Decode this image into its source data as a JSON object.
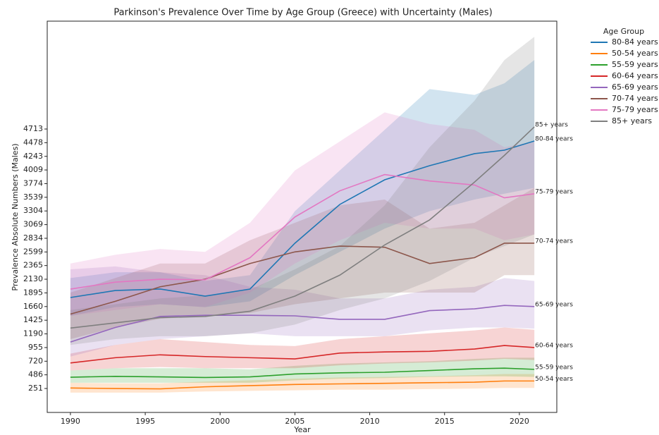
{
  "chart_data": {
    "type": "line",
    "title": "Parkinson's Prevalence Over Time by Age Group (Greece) with Uncertainty (Males)",
    "x_label": "Year",
    "y_label": "Prevalence Absolute Numbers (Males)",
    "legend_title": "Age Group",
    "legend_position": "outside right",
    "x": [
      1990,
      1993,
      1996,
      1999,
      2002,
      2005,
      2008,
      2011,
      2014,
      2017,
      2019,
      2021
    ],
    "xlim": [
      1988.45,
      2022.5
    ],
    "xticks": [
      1990,
      1995,
      2000,
      2005,
      2010,
      2015,
      2020
    ],
    "ylim": [
      -161,
      6568
    ],
    "yticks": [
      251,
      486,
      720,
      955,
      1190,
      1425,
      1660,
      1895,
      2130,
      2365,
      2599,
      2834,
      3069,
      3304,
      3539,
      3774,
      4009,
      4243,
      4478,
      4713
    ],
    "series": [
      {
        "name": "80-84 years",
        "color": "#1f77b4",
        "values": [
          1815,
          1936,
          1961,
          1839,
          1961,
          2749,
          3416,
          3840,
          4083,
          4289,
          4349,
          4507
        ],
        "lower": [
          1500,
          1650,
          1700,
          1650,
          1750,
          2200,
          2600,
          3000,
          3300,
          3500,
          3600,
          3700
        ],
        "upper": [
          2150,
          2250,
          2250,
          2100,
          2200,
          3300,
          4000,
          4700,
          5400,
          5300,
          5500,
          5900
        ]
      },
      {
        "name": "50-54 years",
        "color": "#ff7f0e",
        "values": [
          260,
          250,
          245,
          280,
          300,
          320,
          330,
          340,
          350,
          360,
          380,
          380
        ],
        "lower": [
          180,
          180,
          180,
          200,
          210,
          220,
          230,
          230,
          240,
          250,
          260,
          260
        ],
        "upper": [
          350,
          340,
          340,
          370,
          390,
          420,
          440,
          450,
          460,
          480,
          500,
          500
        ]
      },
      {
        "name": "55-59 years",
        "color": "#2ca02c",
        "values": [
          445,
          460,
          450,
          440,
          450,
          500,
          520,
          530,
          560,
          590,
          600,
          580
        ],
        "lower": [
          350,
          350,
          350,
          350,
          350,
          390,
          420,
          430,
          450,
          460,
          460,
          450
        ],
        "upper": [
          560,
          600,
          600,
          600,
          580,
          640,
          680,
          700,
          720,
          760,
          780,
          780
        ]
      },
      {
        "name": "60-64 years",
        "color": "#d62728",
        "values": [
          690,
          780,
          830,
          800,
          780,
          760,
          860,
          880,
          890,
          930,
          990,
          955
        ],
        "lower": [
          560,
          600,
          620,
          600,
          600,
          600,
          650,
          680,
          700,
          730,
          760,
          740
        ],
        "upper": [
          850,
          1000,
          1100,
          1050,
          1000,
          980,
          1100,
          1150,
          1200,
          1250,
          1300,
          1260
        ]
      },
      {
        "name": "65-69 years",
        "color": "#9467bd",
        "values": [
          1050,
          1300,
          1490,
          1510,
          1510,
          1500,
          1440,
          1440,
          1590,
          1620,
          1680,
          1660
        ],
        "lower": [
          800,
          1000,
          1100,
          1150,
          1200,
          1150,
          1150,
          1150,
          1250,
          1300,
          1300,
          1280
        ],
        "upper": [
          2300,
          2350,
          2250,
          2200,
          2000,
          1950,
          1800,
          1800,
          1950,
          2000,
          2150,
          2100
        ]
      },
      {
        "name": "70-74 years",
        "color": "#8c564b",
        "values": [
          1530,
          1750,
          2000,
          2130,
          2400,
          2600,
          2700,
          2680,
          2400,
          2500,
          2750,
          2750
        ],
        "lower": [
          1100,
          1300,
          1450,
          1500,
          1550,
          1700,
          1800,
          1900,
          1900,
          1900,
          2200,
          2200
        ],
        "upper": [
          1900,
          2150,
          2400,
          2400,
          2800,
          3100,
          3400,
          3500,
          3000,
          3100,
          3400,
          3700
        ]
      },
      {
        "name": "75-79 years",
        "color": "#e377c2",
        "values": [
          1960,
          2080,
          2130,
          2120,
          2500,
          3200,
          3650,
          3930,
          3820,
          3750,
          3530,
          3600
        ],
        "lower": [
          1500,
          1600,
          1700,
          1650,
          1900,
          2400,
          2800,
          3100,
          3000,
          3000,
          2800,
          2900
        ],
        "upper": [
          2400,
          2550,
          2650,
          2600,
          3100,
          4000,
          4500,
          5000,
          4800,
          4700,
          4400,
          4500
        ]
      },
      {
        "name": "85+ years",
        "color": "#7f7f7f",
        "values": [
          1290,
          1380,
          1470,
          1490,
          1580,
          1840,
          2200,
          2720,
          3150,
          3800,
          4260,
          4750
        ],
        "lower": [
          1000,
          1100,
          1150,
          1150,
          1200,
          1350,
          1600,
          1800,
          2100,
          2500,
          2700,
          2900
        ],
        "upper": [
          1600,
          1700,
          1800,
          1850,
          1950,
          2300,
          2700,
          3400,
          4400,
          5200,
          5900,
          6300
        ]
      }
    ]
  }
}
